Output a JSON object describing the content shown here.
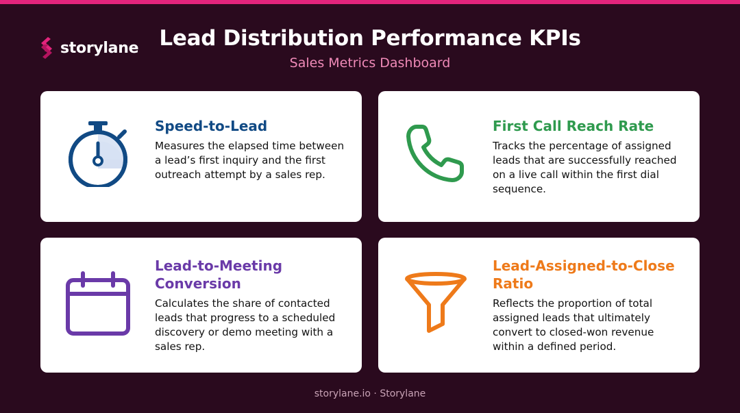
{
  "brand": {
    "name": "storylane",
    "color": "#e3247c"
  },
  "header": {
    "title": "Lead Distribution Performance KPIs",
    "subtitle": "Sales Metrics Dashboard"
  },
  "cards": [
    {
      "icon": "stopwatch-icon",
      "title": "Speed-to-Lead",
      "color": "#114a84",
      "description": "Measures the elapsed time between a lead’s first inquiry and the first outreach attempt by a sales rep."
    },
    {
      "icon": "phone-icon",
      "title": "First Call Reach Rate",
      "color": "#2f9a4e",
      "description": "Tracks the percentage of assigned leads that are successfully reached on a live call within the first dial sequence."
    },
    {
      "icon": "calendar-icon",
      "title": "Lead-to-Meeting Conversion",
      "color": "#6a3aa8",
      "description": "Calculates the share of contacted leads that progress to a scheduled discovery or demo meeting with a sales rep."
    },
    {
      "icon": "funnel-icon",
      "title": "Lead-Assigned-to-Close Ratio",
      "color": "#ee7a1a",
      "description": "Reflects the proportion of total assigned leads that ultimately convert to closed-won revenue within a defined period."
    }
  ],
  "footer": {
    "text": "storylane.io · Storylane"
  }
}
